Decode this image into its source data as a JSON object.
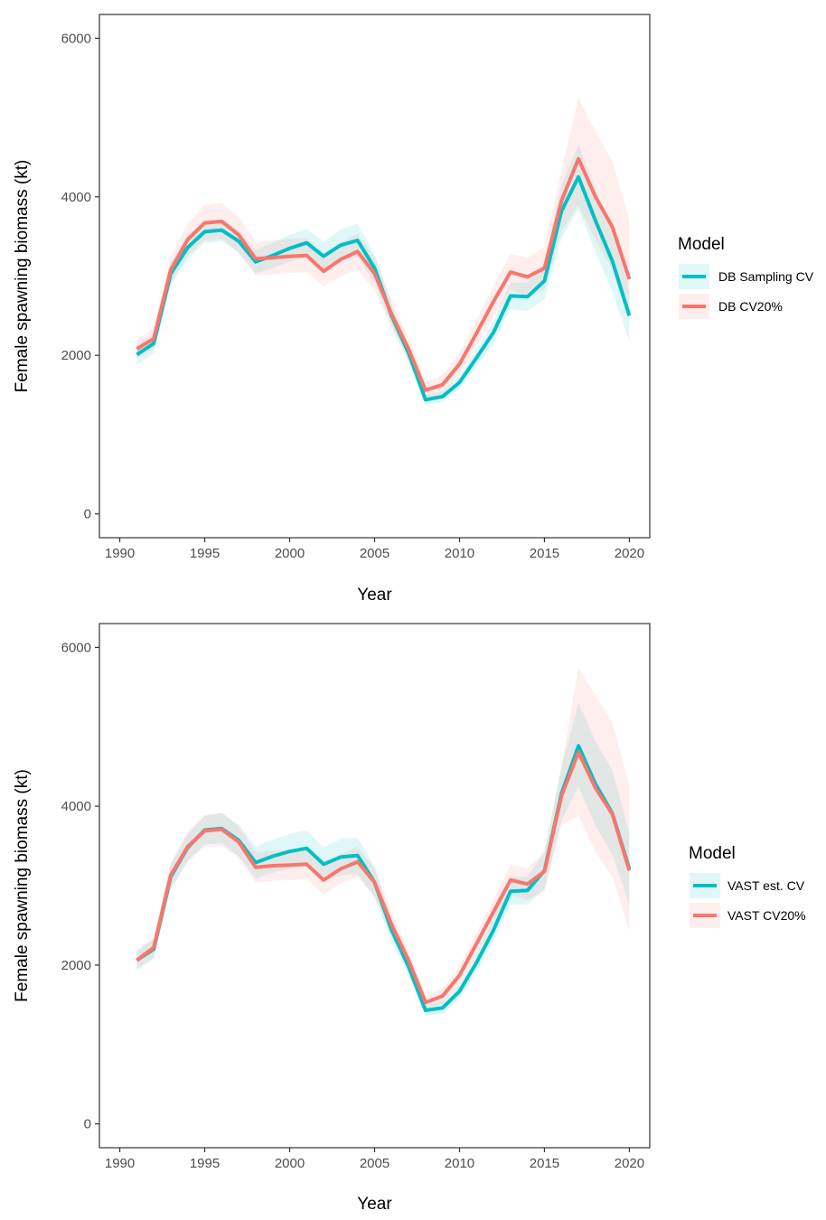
{
  "chart_data": [
    {
      "type": "line",
      "xlabel": "Year",
      "ylabel": "Female spawning biomass (kt)",
      "xlim": [
        1988.8,
        2021.2
      ],
      "ylim": [
        -300,
        6300
      ],
      "xticks": [
        1990,
        1995,
        2000,
        2005,
        2010,
        2015,
        2020
      ],
      "yticks": [
        0,
        2000,
        4000,
        6000
      ],
      "grid": false,
      "legend": {
        "title": "Model",
        "position": "right"
      },
      "x": [
        1991,
        1992,
        1993,
        1994,
        1995,
        1996,
        1997,
        1998,
        1999,
        2000,
        2001,
        2002,
        2003,
        2004,
        2005,
        2006,
        2007,
        2008,
        2009,
        2010,
        2011,
        2012,
        2013,
        2014,
        2015,
        2016,
        2017,
        2018,
        2019,
        2020
      ],
      "series": [
        {
          "name": "DB Sampling CV",
          "color": "#00BFC4",
          "values": [
            2010,
            2150,
            3030,
            3360,
            3560,
            3580,
            3440,
            3180,
            3260,
            3350,
            3420,
            3250,
            3390,
            3450,
            3100,
            2500,
            2030,
            1440,
            1480,
            1660,
            1970,
            2290,
            2750,
            2740,
            2940,
            3820,
            4250,
            3700,
            3190,
            2500
          ],
          "lower": [
            1880,
            2030,
            2880,
            3210,
            3420,
            3440,
            3300,
            3030,
            3100,
            3180,
            3240,
            3070,
            3190,
            3240,
            2920,
            2370,
            1930,
            1380,
            1410,
            1580,
            1860,
            2150,
            2580,
            2560,
            2710,
            3480,
            3840,
            3300,
            2810,
            2170
          ],
          "upper": [
            2140,
            2270,
            3180,
            3510,
            3700,
            3720,
            3580,
            3330,
            3420,
            3520,
            3600,
            3430,
            3590,
            3660,
            3280,
            2630,
            2130,
            1500,
            1550,
            1740,
            2080,
            2430,
            2920,
            2920,
            3170,
            4160,
            4660,
            4100,
            3570,
            2830
          ]
        },
        {
          "name": "DB CV20%",
          "color": "#F8766D",
          "values": [
            2080,
            2210,
            3080,
            3460,
            3670,
            3690,
            3520,
            3220,
            3230,
            3250,
            3260,
            3060,
            3210,
            3310,
            3030,
            2520,
            2080,
            1560,
            1630,
            1890,
            2280,
            2680,
            3050,
            2990,
            3100,
            3950,
            4480,
            4000,
            3620,
            2960
          ],
          "lower": [
            1960,
            2080,
            2910,
            3260,
            3450,
            3470,
            3290,
            3010,
            3020,
            3040,
            3050,
            2870,
            3000,
            3080,
            2820,
            2340,
            1930,
            1450,
            1510,
            1750,
            2110,
            2480,
            2820,
            2750,
            2830,
            3570,
            3890,
            3450,
            3080,
            2450
          ],
          "upper": [
            2200,
            2340,
            3250,
            3660,
            3900,
            3920,
            3750,
            3430,
            3450,
            3470,
            3480,
            3260,
            3420,
            3540,
            3240,
            2700,
            2230,
            1670,
            1750,
            2030,
            2450,
            2880,
            3280,
            3230,
            3370,
            4330,
            5250,
            4820,
            4450,
            3700
          ]
        }
      ]
    },
    {
      "type": "line",
      "xlabel": "Year",
      "ylabel": "Female spawning biomass (kt)",
      "xlim": [
        1988.8,
        2021.2
      ],
      "ylim": [
        -300,
        6300
      ],
      "xticks": [
        1990,
        1995,
        2000,
        2005,
        2010,
        2015,
        2020
      ],
      "yticks": [
        0,
        2000,
        4000,
        6000
      ],
      "grid": false,
      "legend": {
        "title": "Model",
        "position": "right"
      },
      "x": [
        1991,
        1992,
        1993,
        1994,
        1995,
        1996,
        1997,
        1998,
        1999,
        2000,
        2001,
        2002,
        2003,
        2004,
        2005,
        2006,
        2007,
        2008,
        2009,
        2010,
        2011,
        2012,
        2013,
        2014,
        2015,
        2016,
        2017,
        2018,
        2019,
        2020
      ],
      "series": [
        {
          "name": "VAST est. CV",
          "color": "#00BFC4",
          "values": [
            2060,
            2200,
            3110,
            3480,
            3700,
            3720,
            3570,
            3290,
            3370,
            3430,
            3470,
            3270,
            3360,
            3380,
            3040,
            2440,
            1980,
            1430,
            1460,
            1670,
            2030,
            2440,
            2930,
            2940,
            3190,
            4160,
            4760,
            4280,
            3910,
            3210
          ],
          "lower": [
            1930,
            2080,
            2950,
            3310,
            3520,
            3530,
            3370,
            3090,
            3160,
            3210,
            3240,
            3060,
            3130,
            3150,
            2850,
            2300,
            1870,
            1360,
            1380,
            1580,
            1920,
            2300,
            2760,
            2760,
            2960,
            3820,
            4250,
            3750,
            3390,
            2750
          ],
          "upper": [
            2190,
            2320,
            3270,
            3650,
            3880,
            3910,
            3770,
            3490,
            3580,
            3650,
            3700,
            3480,
            3590,
            3610,
            3230,
            2580,
            2090,
            1500,
            1540,
            1760,
            2140,
            2580,
            3100,
            3120,
            3420,
            4500,
            5300,
            4820,
            4450,
            3670
          ]
        },
        {
          "name": "VAST CV20%",
          "color": "#F8766D",
          "values": [
            2060,
            2220,
            3130,
            3490,
            3690,
            3710,
            3550,
            3230,
            3250,
            3260,
            3270,
            3070,
            3210,
            3300,
            3040,
            2510,
            2060,
            1530,
            1610,
            1870,
            2270,
            2670,
            3070,
            3020,
            3180,
            4130,
            4680,
            4230,
            3900,
            3190
          ],
          "lower": [
            1960,
            2090,
            2970,
            3300,
            3490,
            3500,
            3350,
            3040,
            3060,
            3070,
            3080,
            2890,
            3030,
            3110,
            2860,
            2360,
            1940,
            1440,
            1510,
            1760,
            2130,
            2510,
            2880,
            2820,
            2930,
            3760,
            3880,
            3420,
            3110,
            2430
          ],
          "upper": [
            2160,
            2350,
            3290,
            3680,
            3890,
            3920,
            3750,
            3420,
            3440,
            3450,
            3460,
            3250,
            3390,
            3490,
            3220,
            2660,
            2180,
            1620,
            1710,
            1980,
            2410,
            2830,
            3260,
            3220,
            3430,
            4500,
            5740,
            5400,
            5050,
            4260
          ]
        }
      ]
    }
  ]
}
